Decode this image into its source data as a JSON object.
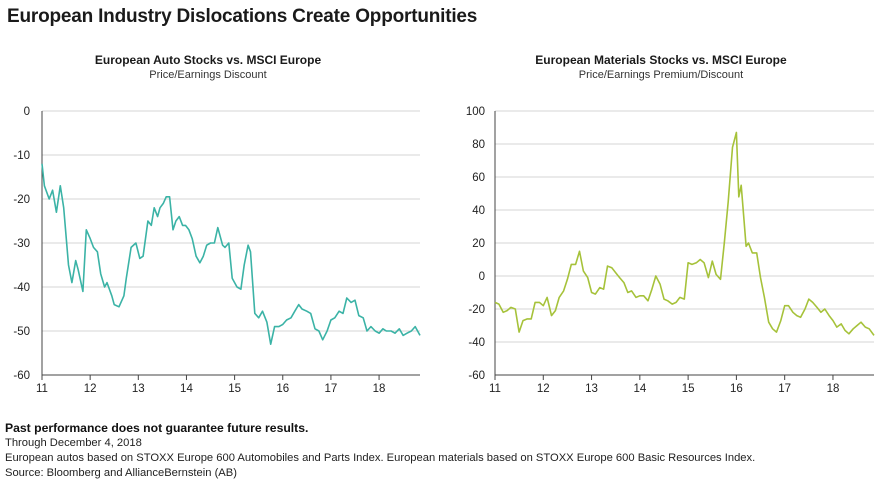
{
  "page": {
    "title": "European Industry Dislocations Create Opportunities"
  },
  "footer": {
    "disclaimer": "Past performance does not guarantee future results.",
    "date_note": "Through December 4, 2018",
    "index_note": "European autos based on STOXX Europe 600 Automobiles and Parts Index. European materials based on STOXX Europe 600 Basic Resources Index.",
    "source": "Source: Bloomberg and AllianceBernstein (AB)"
  },
  "colors": {
    "auto_line": "#3bb3a6",
    "materials_line": "#a6c23a",
    "grid": "#d4d4d4",
    "axis": "#444444"
  },
  "chart_data": [
    {
      "id": "auto",
      "type": "line",
      "title": "European Auto Stocks vs. MSCI Europe",
      "subtitle": "Price/Earnings Discount",
      "xlabel": "",
      "ylabel": "",
      "xlim": [
        2011,
        2018.85
      ],
      "ylim": [
        -60,
        0
      ],
      "y_ticks": [
        0,
        -10,
        -20,
        -30,
        -40,
        -50,
        -60
      ],
      "x_ticks": [
        2011,
        2012,
        2013,
        2014,
        2015,
        2016,
        2017,
        2018
      ],
      "x_tick_labels": [
        "11",
        "12",
        "13",
        "14",
        "15",
        "16",
        "17",
        "18"
      ],
      "grid": true,
      "series": [
        {
          "name": "",
          "x": [
            2011.0,
            2011.05,
            2011.15,
            2011.22,
            2011.3,
            2011.38,
            2011.45,
            2011.55,
            2011.62,
            2011.7,
            2011.75,
            2011.85,
            2011.92,
            2012.0,
            2012.07,
            2012.15,
            2012.22,
            2012.3,
            2012.35,
            2012.45,
            2012.5,
            2012.6,
            2012.7,
            2012.75,
            2012.85,
            2012.95,
            2013.03,
            2013.1,
            2013.2,
            2013.27,
            2013.33,
            2013.4,
            2013.45,
            2013.52,
            2013.58,
            2013.65,
            2013.72,
            2013.78,
            2013.85,
            2013.92,
            2013.98,
            2014.05,
            2014.12,
            2014.2,
            2014.28,
            2014.35,
            2014.42,
            2014.5,
            2014.58,
            2014.65,
            2014.75,
            2014.8,
            2014.88,
            2014.95,
            2015.05,
            2015.13,
            2015.2,
            2015.28,
            2015.33,
            2015.42,
            2015.5,
            2015.58,
            2015.67,
            2015.75,
            2015.83,
            2015.92,
            2016.0,
            2016.08,
            2016.17,
            2016.25,
            2016.33,
            2016.4,
            2016.5,
            2016.58,
            2016.67,
            2016.75,
            2016.83,
            2016.92,
            2017.0,
            2017.08,
            2017.17,
            2017.25,
            2017.33,
            2017.42,
            2017.5,
            2017.58,
            2017.67,
            2017.75,
            2017.83,
            2017.92,
            2018.0,
            2018.08,
            2018.15,
            2018.25,
            2018.33,
            2018.42,
            2018.5,
            2018.58,
            2018.67,
            2018.75,
            2018.85
          ],
          "values": [
            -12,
            -17,
            -20,
            -18,
            -23,
            -17,
            -22,
            -35,
            -39,
            -34,
            -36,
            -41,
            -27,
            -29,
            -31,
            -32,
            -37,
            -40,
            -39,
            -42,
            -44,
            -44.5,
            -42,
            -38,
            -31,
            -30,
            -33.5,
            -33,
            -25,
            -26,
            -22,
            -24,
            -22,
            -21,
            -19.5,
            -19.5,
            -27,
            -25,
            -24,
            -26,
            -26,
            -27,
            -29,
            -33,
            -34.5,
            -33,
            -30.5,
            -30,
            -30,
            -26.5,
            -30.5,
            -31,
            -30,
            -38,
            -40,
            -40.5,
            -35,
            -30.5,
            -32,
            -46,
            -47,
            -45.5,
            -48,
            -53,
            -49,
            -49,
            -48.5,
            -47.5,
            -47,
            -45.5,
            -44,
            -45,
            -45.5,
            -46,
            -49.5,
            -50,
            -52,
            -50,
            -47.5,
            -47,
            -45.5,
            -46,
            -42.5,
            -43.5,
            -43,
            -46.5,
            -47,
            -50,
            -49,
            -50,
            -50.5,
            -49.5,
            -50,
            -50,
            -50.5,
            -49.5,
            -51,
            -50.5,
            -50,
            -49,
            -51
          ]
        }
      ]
    },
    {
      "id": "materials",
      "type": "line",
      "title": "European Materials Stocks vs. MSCI Europe",
      "subtitle": "Price/Earnings Premium/Discount",
      "xlabel": "",
      "ylabel": "",
      "xlim": [
        2011,
        2018.85
      ],
      "ylim": [
        -60,
        100
      ],
      "y_ticks": [
        100,
        80,
        60,
        40,
        20,
        0,
        -20,
        -40,
        -60
      ],
      "x_ticks": [
        2011,
        2012,
        2013,
        2014,
        2015,
        2016,
        2017,
        2018
      ],
      "x_tick_labels": [
        "11",
        "12",
        "13",
        "14",
        "15",
        "16",
        "17",
        "18"
      ],
      "grid": true,
      "series": [
        {
          "name": "",
          "x": [
            2011.0,
            2011.08,
            2011.17,
            2011.25,
            2011.33,
            2011.42,
            2011.5,
            2011.58,
            2011.67,
            2011.75,
            2011.83,
            2011.92,
            2012.0,
            2012.08,
            2012.17,
            2012.25,
            2012.33,
            2012.42,
            2012.5,
            2012.58,
            2012.67,
            2012.75,
            2012.83,
            2012.92,
            2013.0,
            2013.08,
            2013.17,
            2013.25,
            2013.33,
            2013.42,
            2013.5,
            2013.58,
            2013.67,
            2013.75,
            2013.83,
            2013.92,
            2014.0,
            2014.08,
            2014.17,
            2014.25,
            2014.33,
            2014.42,
            2014.5,
            2014.58,
            2014.67,
            2014.75,
            2014.83,
            2014.92,
            2015.0,
            2015.08,
            2015.17,
            2015.25,
            2015.33,
            2015.42,
            2015.5,
            2015.58,
            2015.67,
            2015.75,
            2015.83,
            2015.92,
            2016.0,
            2016.05,
            2016.1,
            2016.15,
            2016.2,
            2016.25,
            2016.33,
            2016.42,
            2016.5,
            2016.58,
            2016.67,
            2016.75,
            2016.83,
            2016.92,
            2017.0,
            2017.08,
            2017.17,
            2017.25,
            2017.33,
            2017.42,
            2017.5,
            2017.58,
            2017.67,
            2017.75,
            2017.83,
            2017.92,
            2018.0,
            2018.08,
            2018.17,
            2018.25,
            2018.33,
            2018.42,
            2018.5,
            2018.58,
            2018.67,
            2018.75,
            2018.85
          ],
          "values": [
            -16,
            -17,
            -22,
            -21,
            -19,
            -20,
            -34,
            -27,
            -26,
            -26,
            -16,
            -16,
            -18,
            -13,
            -24,
            -21,
            -13,
            -9,
            -2,
            7,
            7,
            15,
            3,
            -1,
            -10,
            -11,
            -7,
            -8,
            6,
            5,
            2,
            -1,
            -4,
            -10,
            -9,
            -13,
            -12,
            -12,
            -15,
            -8,
            0,
            -5,
            -14,
            -15,
            -17,
            -16,
            -13,
            -14,
            8,
            7,
            8,
            10,
            8,
            -1,
            9,
            1,
            -2,
            20,
            45,
            78,
            87,
            48,
            55,
            37,
            18,
            20,
            14,
            14,
            -1,
            -13,
            -28,
            -32,
            -34,
            -27,
            -18,
            -18,
            -22,
            -24,
            -25,
            -20,
            -14,
            -16,
            -19,
            -22,
            -20,
            -24,
            -27,
            -31,
            -29,
            -33,
            -35,
            -32,
            -30,
            -28,
            -31,
            -32,
            -36
          ]
        }
      ]
    }
  ]
}
